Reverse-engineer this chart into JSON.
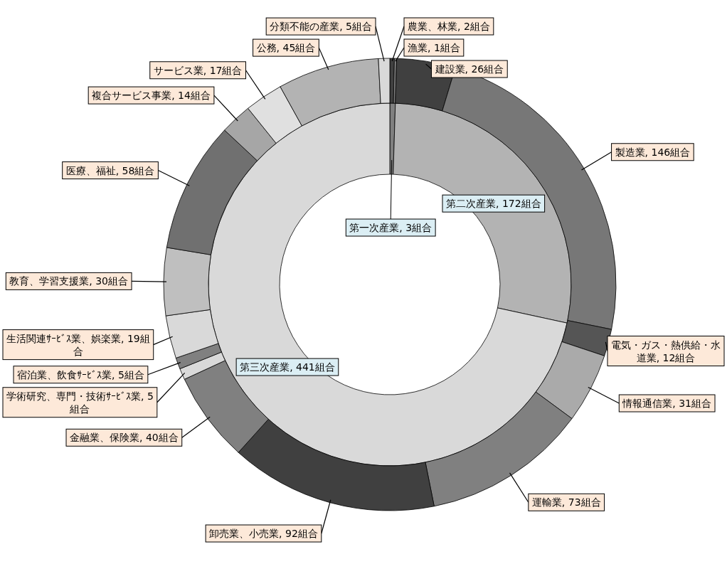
{
  "chart_data": [
    {
      "type": "donut",
      "categories": [
        "第一次産業",
        "第二次産業",
        "第三次産業"
      ],
      "values": [
        3,
        172,
        441
      ],
      "colors": [
        "#808080",
        "#b3b3b3",
        "#d9d9d9"
      ],
      "value_labels": [
        "3組合",
        "172組合",
        "441組合"
      ]
    },
    {
      "type": "donut",
      "categories": [
        "農業、林業",
        "漁業",
        "建設業",
        "製造業",
        "電気・ガス・熱供給・水道業",
        "情報通信業",
        "運輸業",
        "卸売業、小売業",
        "金融業、保険業",
        "学術研究、専門・技術ｻｰﾋﾞｽ業",
        "宿泊業、飲食ｻｰﾋﾞｽ業",
        "生活関連ｻｰﾋﾞｽ業、娯楽業",
        "教育、学習支援業",
        "医療、福祉",
        "複合サービス事業",
        "サービス業",
        "公務",
        "分類不能の産業"
      ],
      "values": [
        2,
        1,
        26,
        146,
        12,
        31,
        73,
        92,
        40,
        5,
        5,
        19,
        30,
        58,
        14,
        17,
        45,
        5
      ],
      "colors": [
        "#404040",
        "#808080",
        "#404040",
        "#777777",
        "#555555",
        "#aaaaaa",
        "#808080",
        "#404040",
        "#808080",
        "#d9d9d9",
        "#808080",
        "#d9d9d9",
        "#bfbfbf",
        "#707070",
        "#a6a6a6",
        "#e0e0e0",
        "#b3b3b3",
        "#d9d9d9"
      ],
      "value_labels": [
        "2組合",
        "1組合",
        "26組合",
        "146組合",
        "12組合",
        "31組合",
        "73組合",
        "92組合",
        "40組合",
        "5組合",
        "5組合",
        "19組合",
        "30組合",
        "58組合",
        "14組合",
        "17組合",
        "45組合",
        "5組合"
      ]
    }
  ]
}
